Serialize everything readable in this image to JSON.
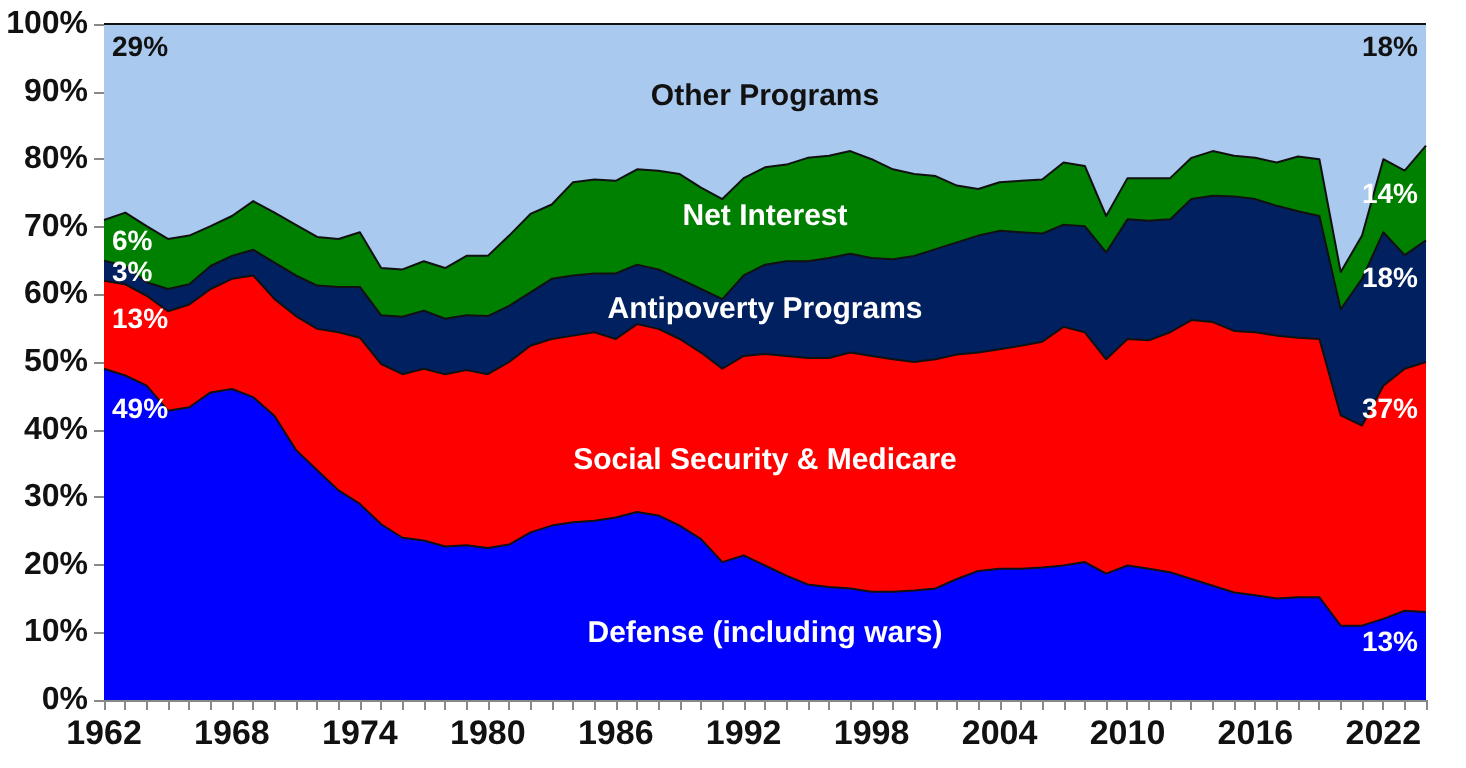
{
  "chart_data": {
    "type": "area",
    "stacked": true,
    "categories": [
      "1962",
      null,
      null,
      null,
      null,
      null,
      "1968",
      null,
      null,
      null,
      null,
      null,
      "1974",
      null,
      null,
      null,
      null,
      null,
      "1980",
      null,
      null,
      null,
      null,
      null,
      "1986",
      null,
      null,
      null,
      null,
      null,
      "1992",
      null,
      null,
      null,
      null,
      null,
      "1998",
      null,
      null,
      null,
      null,
      null,
      "2004",
      null,
      null,
      null,
      null,
      null,
      "2010",
      null,
      null,
      null,
      null,
      null,
      "2016",
      null,
      null,
      null,
      null,
      null,
      "2022",
      null,
      null
    ],
    "ylim": [
      0,
      100
    ],
    "yticks": [
      {
        "value": 0,
        "label": "0%"
      },
      {
        "value": 10,
        "label": "10%"
      },
      {
        "value": 20,
        "label": "20%"
      },
      {
        "value": 30,
        "label": "30%"
      },
      {
        "value": 40,
        "label": "40%"
      },
      {
        "value": 50,
        "label": "50%"
      },
      {
        "value": 60,
        "label": "60%"
      },
      {
        "value": 70,
        "label": "70%"
      },
      {
        "value": 80,
        "label": "80%"
      },
      {
        "value": 90,
        "label": "90%"
      },
      {
        "value": 100,
        "label": "100%"
      }
    ],
    "grid": false,
    "legend": false,
    "marker": "none",
    "line_style": "solid",
    "series": [
      {
        "name": "Defense (including wars)",
        "color": "#0000ff",
        "values": [
          49,
          48,
          46.5,
          42.8,
          43.3,
          45.5,
          46,
          44.8,
          42,
          37,
          34,
          31,
          29,
          26,
          24,
          23.6,
          22.7,
          22.9,
          22.5,
          23,
          24.8,
          25.8,
          26.3,
          26.5,
          27,
          27.8,
          27.3,
          25.8,
          23.8,
          20.4,
          21.4,
          19.9,
          18.4,
          17.1,
          16.7,
          16.5,
          16,
          16,
          16.2,
          16.5,
          17.9,
          19.1,
          19.4,
          19.4,
          19.6,
          19.9,
          20.4,
          18.7,
          19.9,
          19.4,
          18.9,
          17.9,
          16.9,
          15.9,
          15.5,
          15,
          15.2,
          15.2,
          11,
          11,
          12,
          13.2,
          13
        ],
        "value_labels": [
          "49%",
          null,
          null,
          null,
          null,
          null,
          null,
          null,
          null,
          null,
          null,
          null,
          null,
          null,
          null,
          null,
          null,
          null,
          null,
          null,
          null,
          null,
          null,
          null,
          null,
          null,
          null,
          null,
          null,
          null,
          null,
          null,
          null,
          null,
          null,
          null,
          null,
          null,
          null,
          null,
          null,
          null,
          null,
          null,
          null,
          null,
          null,
          null,
          null,
          null,
          null,
          null,
          null,
          null,
          null,
          null,
          null,
          null,
          null,
          null,
          null,
          null,
          "13%"
        ]
      },
      {
        "name": "Social Security & Medicare",
        "color": "#ff0000",
        "values": [
          13,
          13.5,
          13.3,
          14.7,
          15.2,
          15.3,
          16.3,
          18,
          17.3,
          19.8,
          20.9,
          23.4,
          24.6,
          23.7,
          24.2,
          25.4,
          25.5,
          25.9,
          25.7,
          27,
          27.6,
          27.6,
          27.6,
          27.9,
          26.4,
          27.8,
          27.6,
          27.6,
          27.6,
          28.6,
          29.5,
          31.3,
          32.5,
          33.5,
          33.9,
          34.9,
          34.9,
          34.4,
          33.8,
          33.9,
          33.2,
          32.3,
          32.5,
          33,
          33.4,
          35.3,
          34,
          31.7,
          33.5,
          33.8,
          35.5,
          38.3,
          39,
          38.7,
          38.9,
          38.9,
          38.4,
          38.2,
          31.1,
          29.6,
          34.5,
          35.8,
          37
        ],
        "value_labels": [
          "13%",
          null,
          null,
          null,
          null,
          null,
          null,
          null,
          null,
          null,
          null,
          null,
          null,
          null,
          null,
          null,
          null,
          null,
          null,
          null,
          null,
          null,
          null,
          null,
          null,
          null,
          null,
          null,
          null,
          null,
          null,
          null,
          null,
          null,
          null,
          null,
          null,
          null,
          null,
          null,
          null,
          null,
          null,
          null,
          null,
          null,
          null,
          null,
          null,
          null,
          null,
          null,
          null,
          null,
          null,
          null,
          null,
          null,
          null,
          null,
          null,
          null,
          "37%"
        ]
      },
      {
        "name": "Antipoverty Programs",
        "color": "#002060",
        "values": [
          3,
          2.7,
          2,
          3.3,
          3,
          3.4,
          3.4,
          3.8,
          5.4,
          6,
          6.4,
          6.7,
          7.5,
          7.2,
          8.5,
          8.6,
          8.2,
          8.1,
          8.6,
          8.3,
          7.9,
          8.9,
          8.9,
          8.7,
          9.7,
          8.8,
          8.8,
          8.9,
          9.4,
          10.3,
          11.9,
          13.2,
          14,
          14.3,
          14.8,
          14.6,
          14.5,
          14.8,
          15.7,
          16.3,
          16.6,
          17.3,
          17.5,
          16.8,
          16,
          15.1,
          15.7,
          15.8,
          17.7,
          17.7,
          16.7,
          17.9,
          18.7,
          19.9,
          19.7,
          19.2,
          18.7,
          18.2,
          15.7,
          21.7,
          22.7,
          16.8,
          18
        ],
        "value_labels": [
          "3%",
          null,
          null,
          null,
          null,
          null,
          null,
          null,
          null,
          null,
          null,
          null,
          null,
          null,
          null,
          null,
          null,
          null,
          null,
          null,
          null,
          null,
          null,
          null,
          null,
          null,
          null,
          null,
          null,
          null,
          null,
          null,
          null,
          null,
          null,
          null,
          null,
          null,
          null,
          null,
          null,
          null,
          null,
          null,
          null,
          null,
          null,
          null,
          null,
          null,
          null,
          null,
          null,
          null,
          null,
          null,
          null,
          null,
          null,
          null,
          null,
          null,
          "18%"
        ]
      },
      {
        "name": "Net Interest",
        "color": "#008000",
        "values": [
          6,
          7.9,
          8.3,
          7.4,
          7.2,
          5.9,
          5.9,
          7.2,
          7.4,
          7.5,
          7.2,
          7.1,
          8.1,
          7,
          7,
          7.3,
          7.5,
          8.8,
          8.9,
          10.4,
          11.6,
          11,
          13.8,
          13.9,
          13.7,
          14.1,
          14.6,
          15.5,
          15,
          14.8,
          14.4,
          14.4,
          14.3,
          15.3,
          15.1,
          15.2,
          14.6,
          13.3,
          12.1,
          10.8,
          8.4,
          6.9,
          7.2,
          7.6,
          8,
          9.2,
          8.9,
          5.4,
          6.1,
          6.3,
          6.1,
          6.1,
          6.6,
          6,
          6.1,
          6.4,
          8.1,
          8.4,
          5.5,
          6.4,
          10.8,
          12.5,
          14
        ],
        "value_labels": [
          "6%",
          null,
          null,
          null,
          null,
          null,
          null,
          null,
          null,
          null,
          null,
          null,
          null,
          null,
          null,
          null,
          null,
          null,
          null,
          null,
          null,
          null,
          null,
          null,
          null,
          null,
          null,
          null,
          null,
          null,
          null,
          null,
          null,
          null,
          null,
          null,
          null,
          null,
          null,
          null,
          null,
          null,
          null,
          null,
          null,
          null,
          null,
          null,
          null,
          null,
          null,
          null,
          null,
          null,
          null,
          null,
          null,
          null,
          null,
          null,
          null,
          null,
          "14%"
        ]
      },
      {
        "name": "Other Programs",
        "color": "#a9c9ee",
        "values": [
          29,
          27.9,
          29.9,
          31.8,
          31.3,
          29.9,
          28.4,
          26.2,
          27.9,
          29.7,
          31.5,
          31.8,
          30.8,
          36.1,
          36.3,
          35.1,
          36.1,
          34.3,
          34.3,
          31.3,
          28.1,
          26.7,
          23.4,
          23,
          23.2,
          21.5,
          21.7,
          22.2,
          24.2,
          25.9,
          22.8,
          21.2,
          20.8,
          19.8,
          19.5,
          18.8,
          20,
          21.5,
          22.2,
          22.5,
          23.9,
          24.4,
          23.4,
          23.2,
          23,
          20.5,
          21,
          28.4,
          22.8,
          22.8,
          22.8,
          19.8,
          18.8,
          19.5,
          19.8,
          20.5,
          19.6,
          20,
          36.7,
          31.3,
          20,
          21.7,
          18
        ],
        "value_labels": [
          "29%",
          null,
          null,
          null,
          null,
          null,
          null,
          null,
          null,
          null,
          null,
          null,
          null,
          null,
          null,
          null,
          null,
          null,
          null,
          null,
          null,
          null,
          null,
          null,
          null,
          null,
          null,
          null,
          null,
          null,
          null,
          null,
          null,
          null,
          null,
          null,
          null,
          null,
          null,
          null,
          null,
          null,
          null,
          null,
          null,
          null,
          null,
          null,
          null,
          null,
          null,
          null,
          null,
          null,
          null,
          null,
          null,
          null,
          null,
          null,
          null,
          null,
          "18%"
        ]
      }
    ]
  }
}
